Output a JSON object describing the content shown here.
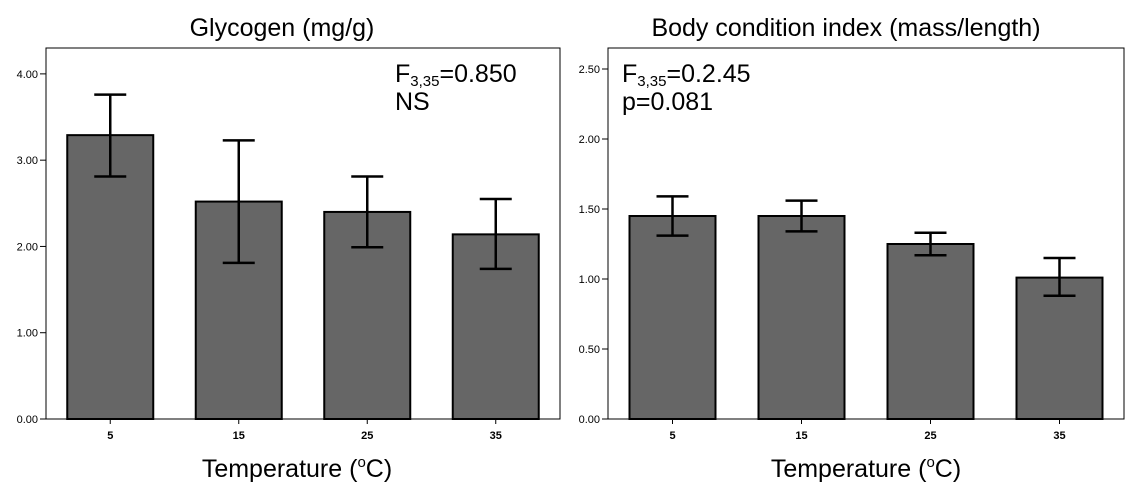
{
  "chart_data": [
    {
      "type": "bar",
      "title": "Glycogen (mg/g)",
      "xlabel_main": "Temperature (",
      "xlabel_sup": "o",
      "xlabel_end": "C)",
      "categories": [
        "5",
        "15",
        "25",
        "35"
      ],
      "values": [
        3.29,
        2.52,
        2.4,
        2.14
      ],
      "error_high": [
        3.76,
        3.23,
        2.81,
        2.55
      ],
      "error_low": [
        2.81,
        1.81,
        1.99,
        1.74
      ],
      "ylim": [
        0,
        4.3
      ],
      "yticks": [
        "0.00",
        "1.00",
        "2.00",
        "3.00",
        "4.00"
      ],
      "ytick_values": [
        0,
        1,
        2,
        3,
        4
      ],
      "annotation": {
        "f_prefix": "F",
        "f_sub": "3,35",
        "f_value": "=0.850",
        "line2": "NS"
      },
      "colors": {
        "bar": "#666666",
        "stroke": "#000000"
      }
    },
    {
      "type": "bar",
      "title": "Body condition index (mass/length)",
      "xlabel_main": "Temperature (",
      "xlabel_sup": "o",
      "xlabel_end": "C)",
      "categories": [
        "5",
        "15",
        "25",
        "35"
      ],
      "values": [
        1.45,
        1.45,
        1.25,
        1.01
      ],
      "error_high": [
        1.59,
        1.56,
        1.33,
        1.15
      ],
      "error_low": [
        1.31,
        1.34,
        1.17,
        0.88
      ],
      "ylim": [
        0,
        2.65
      ],
      "yticks": [
        "0.00",
        "0.50",
        "1.00",
        "1.50",
        "2.00",
        "2.50"
      ],
      "ytick_values": [
        0,
        0.5,
        1,
        1.5,
        2,
        2.5
      ],
      "annotation": {
        "f_prefix": "F",
        "f_sub": "3,35",
        "f_value": "=0.2.45",
        "line2": "p=0.081"
      },
      "colors": {
        "bar": "#666666",
        "stroke": "#000000"
      }
    }
  ]
}
